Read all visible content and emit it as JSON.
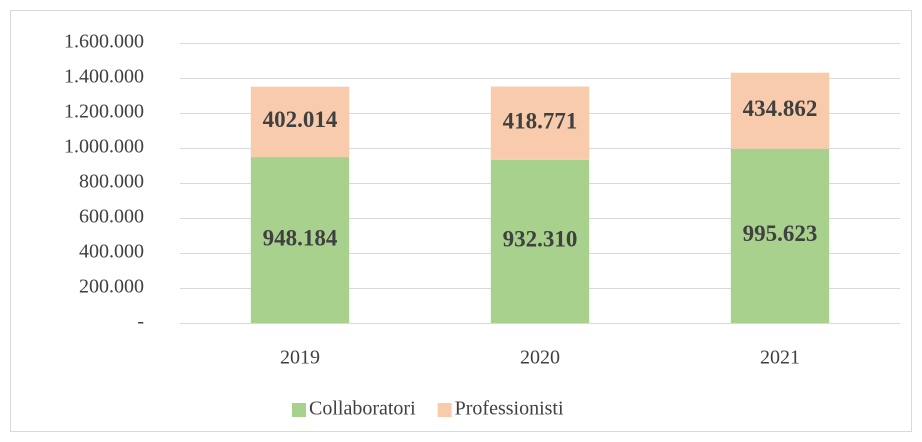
{
  "chart_data": {
    "type": "bar",
    "stacked": true,
    "categories": [
      "2019",
      "2020",
      "2021"
    ],
    "series": [
      {
        "name": "Collaboratori",
        "color": "#a9d18e",
        "values": [
          948184,
          932310,
          995623
        ],
        "value_labels": [
          "948.184",
          "932.310",
          "995.623"
        ]
      },
      {
        "name": "Professionisti",
        "color": "#f8cbad",
        "values": [
          402014,
          418771,
          434862
        ],
        "value_labels": [
          "402.014",
          "418.771",
          "434.862"
        ]
      }
    ],
    "ylim": [
      0,
      1600000
    ],
    "yticks": [
      {
        "value": 0,
        "label": "-"
      },
      {
        "value": 200000,
        "label": "200.000"
      },
      {
        "value": 400000,
        "label": "400.000"
      },
      {
        "value": 600000,
        "label": "600.000"
      },
      {
        "value": 800000,
        "label": "800.000"
      },
      {
        "value": 1000000,
        "label": "1.000.000"
      },
      {
        "value": 1200000,
        "label": "1.200.000"
      },
      {
        "value": 1400000,
        "label": "1.400.000"
      },
      {
        "value": 1600000,
        "label": "1.600.000"
      }
    ],
    "grid": true,
    "legend": "bottom"
  }
}
